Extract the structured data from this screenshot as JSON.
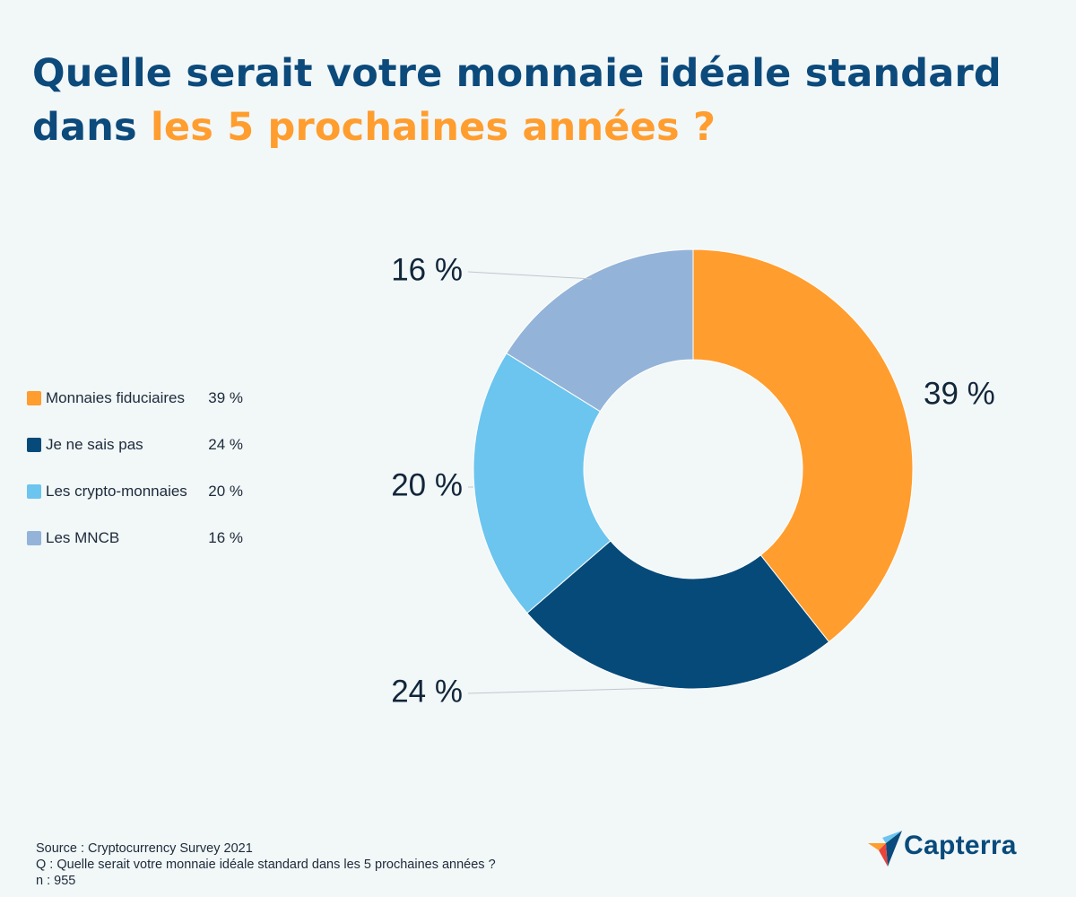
{
  "title": {
    "line1": "Quelle serait votre monnaie idéale standard",
    "line2_prefix": "dans ",
    "line2_highlight": "les 5 prochaines années ?"
  },
  "colors": {
    "title": "#0b4a7b",
    "highlight": "#ff9d2e",
    "leader_line": "#bfc8cf"
  },
  "chart_data": {
    "type": "pie",
    "subtype": "donut",
    "title": "Quelle serait votre monnaie idéale standard dans les 5 prochaines années ?",
    "slices": [
      {
        "name": "Monnaies fiduciaires",
        "value": 39,
        "label": "39 %",
        "color": "#ff9d2e"
      },
      {
        "name": "Je ne sais pas",
        "value": 24,
        "label": "24 %",
        "color": "#064a7a"
      },
      {
        "name": "Les crypto-monnaies",
        "value": 20,
        "label": "20 %",
        "color": "#6bc5ee"
      },
      {
        "name": "Les MNCB",
        "value": 16,
        "label": "16 %",
        "color": "#94b3d8"
      }
    ],
    "legend_position": "left"
  },
  "footer": {
    "source": "Source : Cryptocurrency Survey 2021",
    "question": "Q : Quelle serait votre monnaie idéale standard dans les 5 prochaines années ?",
    "n": "n : 955"
  },
  "brand": {
    "name": "Capterra",
    "icon": "capterra-logo-icon"
  }
}
